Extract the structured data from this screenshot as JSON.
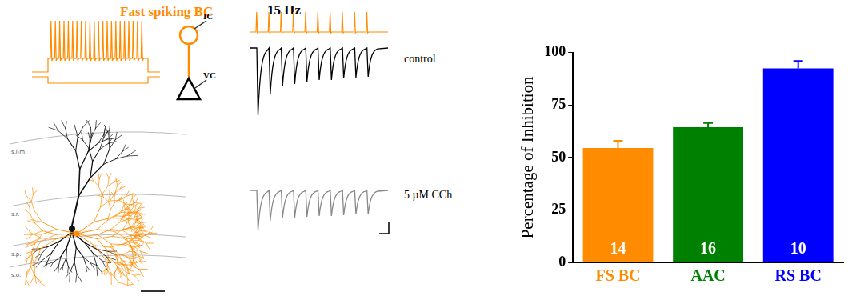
{
  "figure": {
    "cell_title": "Fast spiking BC",
    "layers": [
      "s.l-m.",
      "s.r.",
      "s.p.",
      "s.o."
    ],
    "electrodes": [
      "IC",
      "VC"
    ],
    "stimulus": "15 Hz",
    "conditions": [
      "control",
      "5 µM CCh"
    ]
  },
  "chart_data": {
    "type": "bar",
    "categories": [
      "FS BC",
      "AAC",
      "RS BC"
    ],
    "values": [
      54.5,
      64.5,
      92.5
    ],
    "errors": [
      3.5,
      2,
      3.5
    ],
    "n": [
      14,
      16,
      10
    ],
    "colors": [
      "#ff8c00",
      "#008000",
      "#0000ff"
    ],
    "y_label": "Percentage of Inhibition",
    "ylim": [
      0,
      100
    ],
    "yticks": [
      0,
      25,
      50,
      75,
      100
    ],
    "grid": false
  }
}
